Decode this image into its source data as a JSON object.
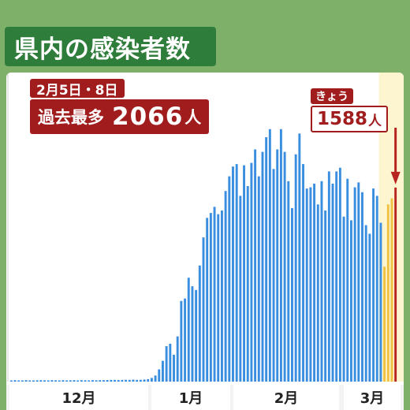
{
  "title": "県内の感染者数",
  "record": {
    "date": "2月5日・8日",
    "label": "過去最多",
    "value": "2066",
    "unit": "人"
  },
  "today": {
    "label": "きょう",
    "value": "1588",
    "unit": "人"
  },
  "colors": {
    "bar": "#3a8ee0",
    "today_bar": "#b8241f",
    "recent_bars": "#f0c040",
    "highlight_bg": "#fdf5d0",
    "record_bg": "#a11d1d",
    "title_bg": "#2f7d3a",
    "background": "#7fb069"
  },
  "chart_data": {
    "type": "bar",
    "title": "県内の感染者数",
    "ylim": [
      0,
      2400
    ],
    "grid": false,
    "months": [
      "12月",
      "1月",
      "2月",
      "3月"
    ],
    "values": [
      10,
      12,
      10,
      10,
      12,
      10,
      10,
      11,
      12,
      11,
      10,
      12,
      11,
      10,
      12,
      10,
      11,
      12,
      10,
      12,
      11,
      10,
      12,
      11,
      12,
      12,
      13,
      14,
      14,
      13,
      14,
      15,
      14,
      16,
      14,
      15,
      17,
      20,
      30,
      50,
      100,
      170,
      290,
      310,
      220,
      370,
      660,
      680,
      850,
      780,
      750,
      950,
      1180,
      1340,
      1380,
      1430,
      1370,
      1400,
      1560,
      1680,
      1760,
      1780,
      1520,
      1770,
      1600,
      1790,
      1900,
      1680,
      1880,
      2000,
      2066,
      1740,
      1900,
      2066,
      1880,
      1640,
      1420,
      1860,
      2030,
      1780,
      1580,
      1590,
      1620,
      1450,
      1640,
      1400,
      1720,
      1620,
      1720,
      1750,
      1350,
      1660,
      1320,
      1590,
      1630,
      1550,
      1280,
      1210,
      1580,
      1520,
      1300,
      940,
      1450,
      1500,
      1588
    ],
    "recent_indices": [
      101,
      102,
      103
    ],
    "today_index": 104,
    "record_indices": [
      69,
      73
    ]
  }
}
